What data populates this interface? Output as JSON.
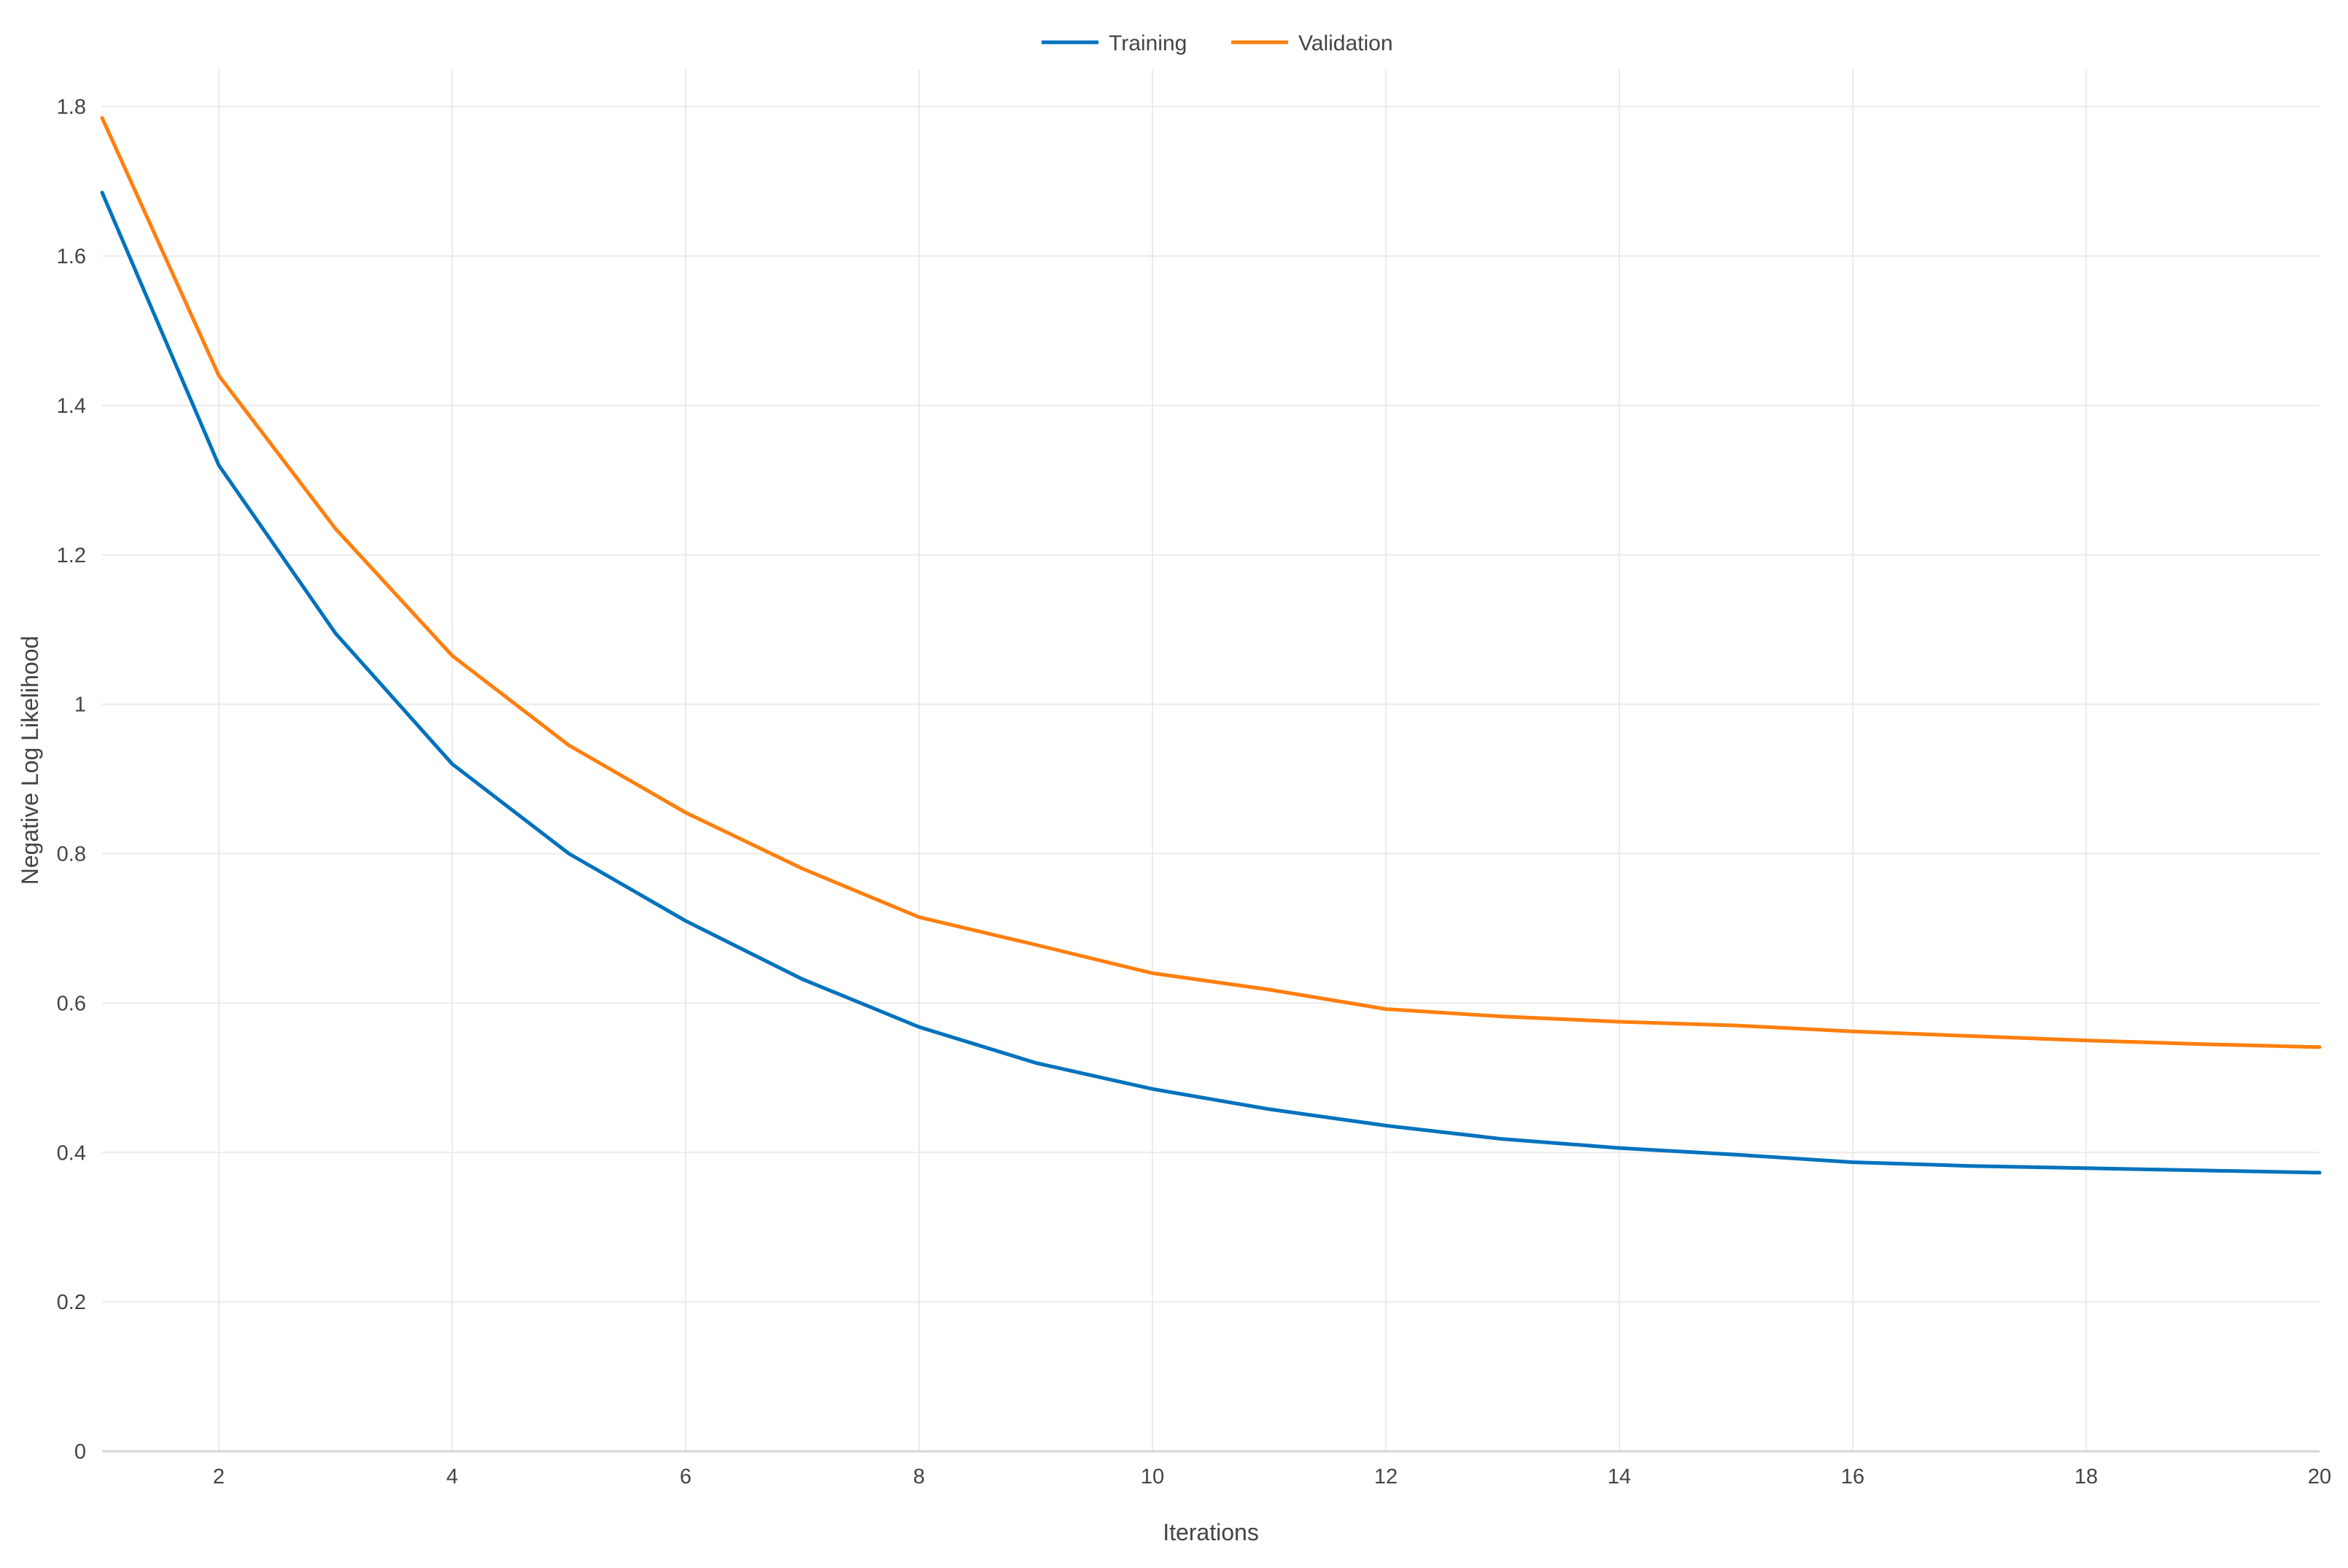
{
  "chart_data": {
    "type": "line",
    "title": "",
    "xlabel": "Iterations",
    "ylabel": "Negative Log Likelihood",
    "xlim": [
      1,
      20
    ],
    "ylim": [
      0,
      1.85
    ],
    "x_ticks": [
      2,
      4,
      6,
      8,
      10,
      12,
      14,
      16,
      18,
      20
    ],
    "y_ticks": [
      0,
      0.2,
      0.4,
      0.6,
      0.8,
      1,
      1.2,
      1.4,
      1.6,
      1.8
    ],
    "x_tick_labels": [
      "2",
      "4",
      "6",
      "8",
      "10",
      "12",
      "14",
      "16",
      "18",
      "20"
    ],
    "y_tick_labels": [
      "0",
      "0.2",
      "0.4",
      "0.6",
      "0.8",
      "1",
      "1.2",
      "1.4",
      "1.6",
      "1.8"
    ],
    "grid": true,
    "legend_position": "top-center",
    "x": [
      1,
      2,
      3,
      4,
      5,
      6,
      7,
      8,
      9,
      10,
      11,
      12,
      13,
      14,
      15,
      16,
      17,
      18,
      19,
      20
    ],
    "series": [
      {
        "name": "Training",
        "color": "#0072BD",
        "values": [
          1.685,
          1.32,
          1.095,
          0.92,
          0.8,
          0.71,
          0.632,
          0.568,
          0.52,
          0.485,
          0.458,
          0.436,
          0.418,
          0.406,
          0.397,
          0.387,
          0.382,
          0.379,
          0.376,
          0.373
        ]
      },
      {
        "name": "Validation",
        "color": "#FF7F0E",
        "values": [
          1.785,
          1.44,
          1.235,
          1.065,
          0.945,
          0.855,
          0.78,
          0.715,
          0.678,
          0.64,
          0.618,
          0.592,
          0.582,
          0.575,
          0.57,
          0.562,
          0.556,
          0.55,
          0.545,
          0.541
        ]
      }
    ]
  }
}
